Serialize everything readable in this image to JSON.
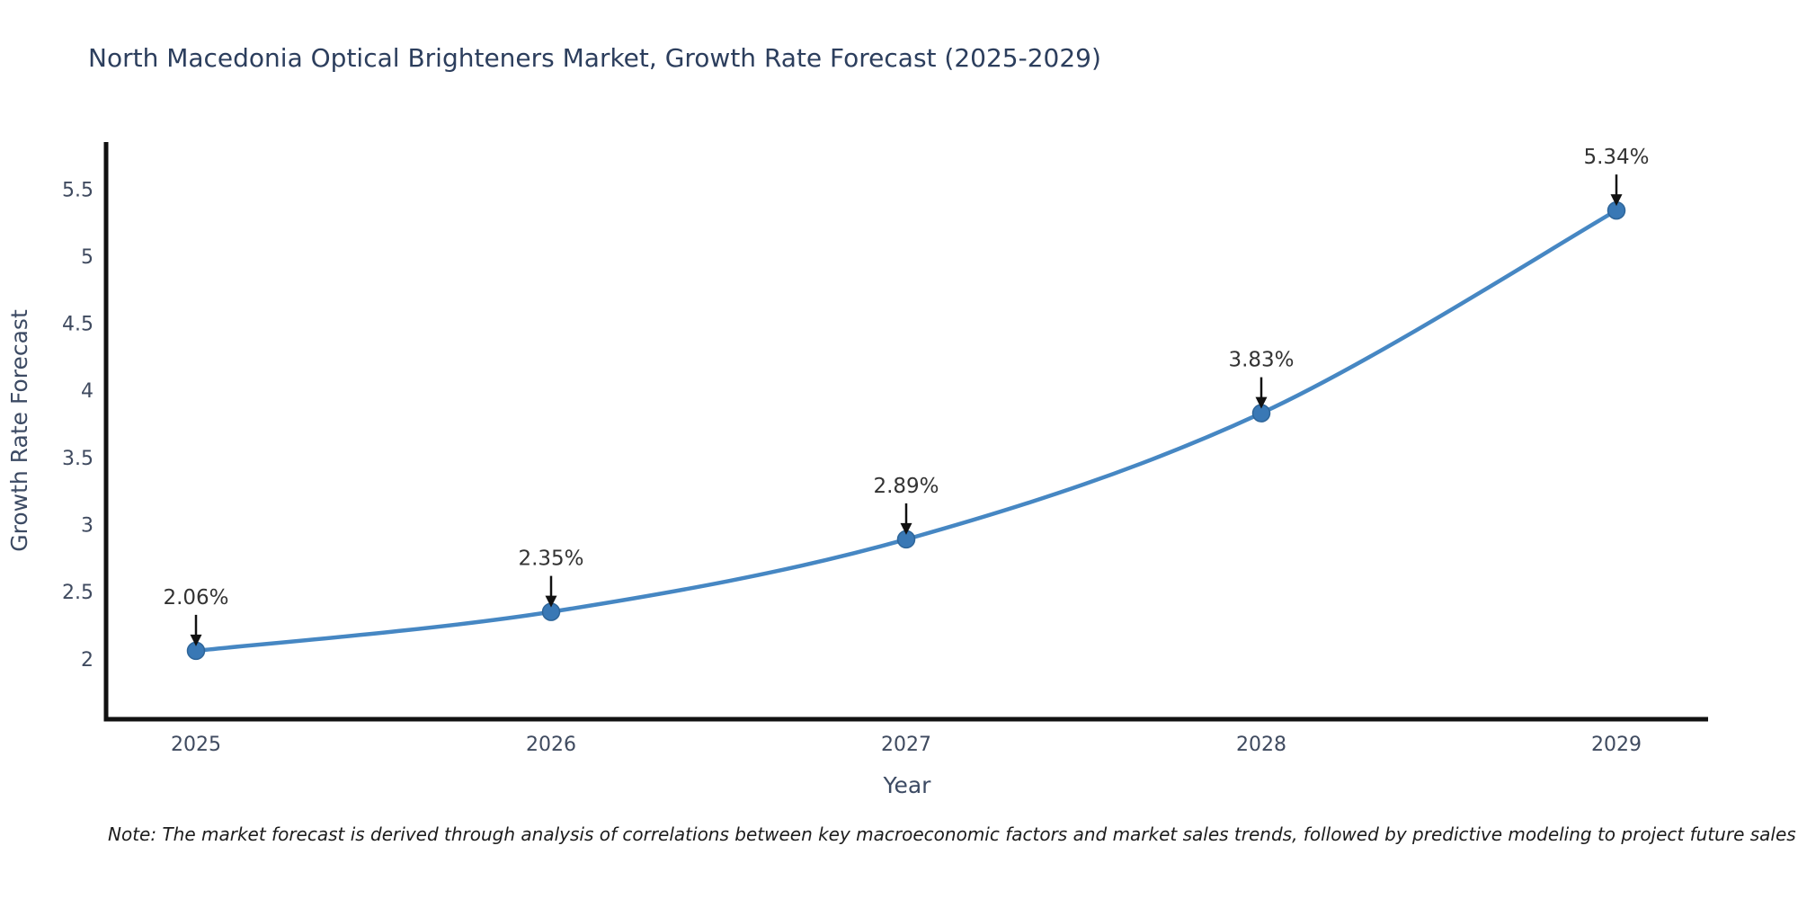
{
  "page": {
    "title": "North Macedonia Optical Brighteners Market, Growth Rate Forecast (2025-2029)",
    "note": "Note: The market forecast is derived through analysis of correlations between key macroeconomic factors and market sales trends, followed by predictive modeling to project future sales"
  },
  "chart_data": {
    "type": "line",
    "title": "North Macedonia Optical Brighteners Market, Growth Rate Forecast (2025-2029)",
    "xlabel": "Year",
    "ylabel": "Growth Rate Forecast",
    "categories": [
      "2025",
      "2026",
      "2027",
      "2028",
      "2029"
    ],
    "series": [
      {
        "name": "Growth Rate Forecast",
        "values": [
          2.06,
          2.35,
          2.89,
          3.83,
          5.34
        ]
      }
    ],
    "point_labels": [
      "2.06%",
      "2.35%",
      "2.89%",
      "3.83%",
      "5.34%"
    ],
    "y_ticks": [
      2,
      2.5,
      3,
      3.5,
      4,
      4.5,
      5,
      5.5
    ],
    "ylim": [
      1.55,
      5.85
    ],
    "grid": false,
    "legend": "none",
    "line_shape": "spline",
    "marker": "circle",
    "annotation_arrows": true,
    "colors": {
      "line": "#4687c3",
      "marker": "#3978b5",
      "marker_edge": "#2e6599",
      "axis": "#111111",
      "tick_text": "#3f4a5f",
      "axis_title_text": "#3c4a63",
      "title_text": "#2c3e5d",
      "annotation_text": "#333333",
      "annotation_arrow": "#111111"
    }
  }
}
